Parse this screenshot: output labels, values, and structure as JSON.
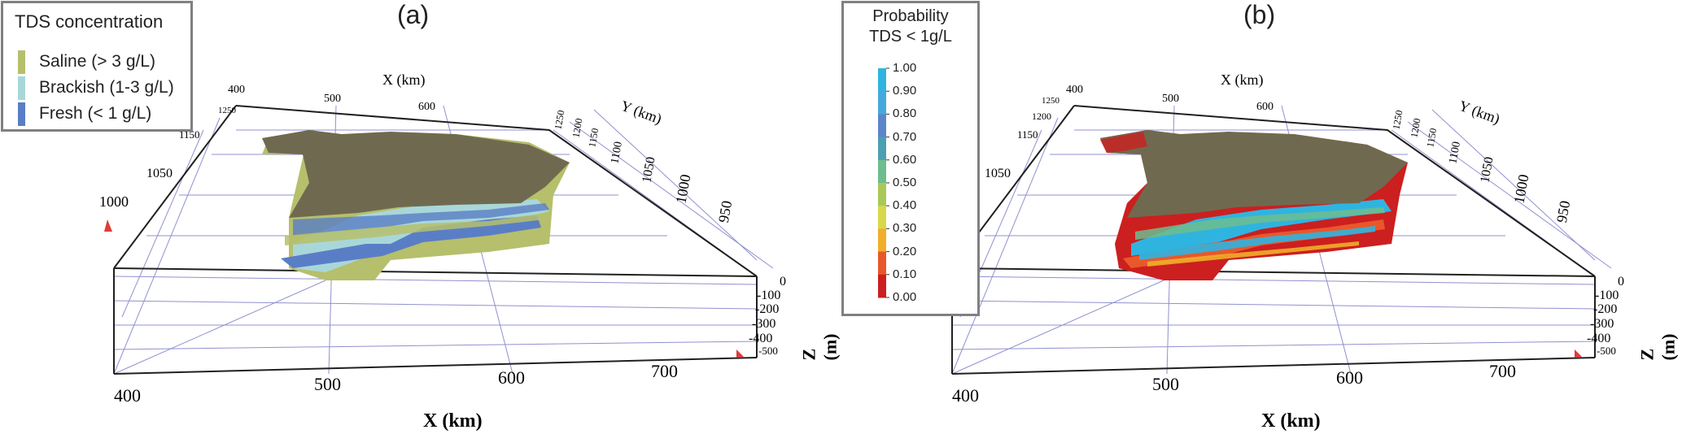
{
  "panel_a": {
    "label": "(a)",
    "legend": {
      "title": "TDS concentration",
      "categories": [
        {
          "label": "Saline (> 3 g/L)",
          "color": "#b6bf6b"
        },
        {
          "label": "Brackish (1-3 g/L)",
          "color": "#a9d7d9"
        },
        {
          "label": "Fresh (< 1 g/L)",
          "color": "#5a7ec6"
        }
      ]
    }
  },
  "panel_b": {
    "label": "(b)",
    "legend": {
      "title_line1": "Probability",
      "title_line2": "TDS < 1g/L",
      "ticks": [
        "1.00",
        "0.90",
        "0.80",
        "0.70",
        "0.60",
        "0.50",
        "0.40",
        "0.30",
        "0.20",
        "0.10",
        "0.00"
      ],
      "colors": [
        "#2fb4e0",
        "#46a9dd",
        "#5c86c9",
        "#4d9fb2",
        "#6dbd8e",
        "#a9c85a",
        "#d8d84b",
        "#f0ae29",
        "#e8582a",
        "#cc1f1f"
      ]
    }
  },
  "axes": {
    "x_title_top": "X (km)",
    "x_title_bottom": "X (km)",
    "y_title": "Y (km)",
    "z_title": "Z (m)",
    "x_ticks_top": [
      "400",
      "500",
      "600"
    ],
    "x_ticks_bottom": [
      "400",
      "500",
      "600",
      "700"
    ],
    "y_ticks_right": [
      "1250",
      "1200",
      "1150",
      "1100",
      "1050",
      "1000",
      "950"
    ],
    "y_ticks_left": [
      "1250",
      "1200",
      "1150",
      "1100",
      "1050",
      "1000"
    ],
    "z_ticks": [
      "0",
      "-100",
      "-200",
      "-300",
      "-400",
      "-500"
    ]
  },
  "colors": {
    "grid_line": "#9090d0",
    "frame_line": "#202020",
    "surface": "#6f6a4f"
  }
}
